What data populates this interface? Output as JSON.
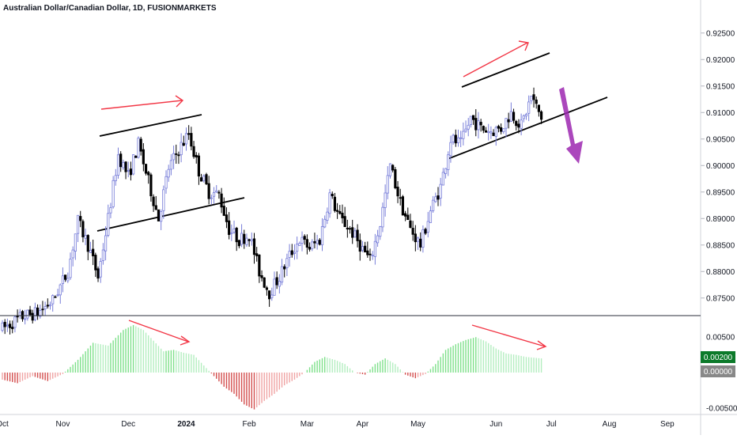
{
  "header": {
    "title": "Australian Dollar/Canadian Dollar, 1D, FUSIONMARKETS"
  },
  "colors": {
    "candle_up": "#787ed9",
    "candle_down": "#000000",
    "candle_up_body": "#ffffff",
    "hist_pos_strong": "#7ee08a",
    "hist_pos_weak": "#b4eec0",
    "hist_neg_strong": "#d44e4e",
    "hist_neg_weak": "#f0a4a4",
    "annotation_red": "#f23645",
    "annotation_purple": "#9c27b0",
    "badge_green": "#0c7a2a",
    "badge_grey": "#888888"
  },
  "chart_data": [
    {
      "type": "candlestick",
      "title": "Australian Dollar/Canadian Dollar, 1D, FUSIONMARKETS",
      "x_ticks": [
        "Oct",
        "Nov",
        "Dec",
        "2024",
        "Feb",
        "Mar",
        "Apr",
        "May",
        "Jun",
        "Jul",
        "Aug",
        "Sep"
      ],
      "y_ticks": [
        "0.87500",
        "0.88000",
        "0.88500",
        "0.89000",
        "0.89500",
        "0.90000",
        "0.90500",
        "0.91000",
        "0.91500",
        "0.92000",
        "0.92500"
      ],
      "ylim": [
        0.8683,
        0.9275
      ],
      "anchors": [
        [
          0,
          0.8692
        ],
        [
          8,
          0.8715
        ],
        [
          14,
          0.8722
        ],
        [
          20,
          0.8745
        ],
        [
          26,
          0.88
        ],
        [
          30,
          0.8895
        ],
        [
          34,
          0.885
        ],
        [
          38,
          0.879
        ],
        [
          42,
          0.89
        ],
        [
          46,
          0.902
        ],
        [
          50,
          0.898
        ],
        [
          54,
          0.904
        ],
        [
          58,
          0.897
        ],
        [
          62,
          0.89
        ],
        [
          66,
          0.8995
        ],
        [
          70,
          0.903
        ],
        [
          74,
          0.906
        ],
        [
          78,
          0.899
        ],
        [
          82,
          0.895
        ],
        [
          86,
          0.8945
        ],
        [
          90,
          0.888
        ],
        [
          94,
          0.886
        ],
        [
          98,
          0.887
        ],
        [
          102,
          0.88
        ],
        [
          106,
          0.876
        ],
        [
          110,
          0.879
        ],
        [
          114,
          0.883
        ],
        [
          118,
          0.886
        ],
        [
          122,
          0.8845
        ],
        [
          126,
          0.886
        ],
        [
          130,
          0.8945
        ],
        [
          134,
          0.89
        ],
        [
          138,
          0.888
        ],
        [
          142,
          0.885
        ],
        [
          146,
          0.882
        ],
        [
          150,
          0.889
        ],
        [
          154,
          0.9
        ],
        [
          158,
          0.893
        ],
        [
          162,
          0.888
        ],
        [
          166,
          0.885
        ],
        [
          170,
          0.8915
        ],
        [
          174,
          0.896
        ],
        [
          178,
          0.905
        ],
        [
          182,
          0.904
        ],
        [
          186,
          0.909
        ],
        [
          190,
          0.907
        ],
        [
          194,
          0.9065
        ],
        [
          198,
          0.907
        ],
        [
          202,
          0.91
        ],
        [
          206,
          0.9075
        ],
        [
          210,
          0.913
        ],
        [
          214,
          0.909
        ]
      ],
      "annotations": [
        "resistance line Nov-Dec",
        "support line Nov-Jan",
        "rising channel upper May-Jun",
        "rising channel lower May-Jul",
        "red up arrow Dec",
        "red up arrow Jun",
        "purple down arrow"
      ]
    },
    {
      "type": "histogram",
      "series_name": "oscillator",
      "y_ticks": [
        "0.00500",
        "0.00200",
        "0.00000",
        "-0.00500"
      ],
      "ylim": [
        -0.0062,
        0.0072
      ],
      "last_value": "0.00200",
      "zero_label": "0.00000",
      "anchors": [
        [
          0,
          -0.001
        ],
        [
          6,
          -0.0015
        ],
        [
          12,
          -0.0005
        ],
        [
          18,
          -0.0012
        ],
        [
          24,
          -0.0002
        ],
        [
          30,
          0.0018
        ],
        [
          36,
          0.0042
        ],
        [
          42,
          0.0038
        ],
        [
          48,
          0.006
        ],
        [
          52,
          0.0067
        ],
        [
          56,
          0.006
        ],
        [
          60,
          0.0045
        ],
        [
          64,
          0.003
        ],
        [
          68,
          0.0032
        ],
        [
          72,
          0.0028
        ],
        [
          76,
          0.0025
        ],
        [
          80,
          0.001
        ],
        [
          84,
          -0.0005
        ],
        [
          88,
          -0.002
        ],
        [
          92,
          -0.003
        ],
        [
          96,
          -0.0045
        ],
        [
          100,
          -0.0052
        ],
        [
          104,
          -0.004
        ],
        [
          108,
          -0.003
        ],
        [
          112,
          -0.0018
        ],
        [
          116,
          -0.001
        ],
        [
          120,
          0.0
        ],
        [
          124,
          0.0015
        ],
        [
          128,
          0.0022
        ],
        [
          132,
          0.0018
        ],
        [
          136,
          0.0012
        ],
        [
          140,
          0.0
        ],
        [
          144,
          -0.0003
        ],
        [
          148,
          0.0012
        ],
        [
          152,
          0.002
        ],
        [
          156,
          0.0012
        ],
        [
          160,
          -0.0003
        ],
        [
          164,
          -0.0008
        ],
        [
          168,
          -0.0002
        ],
        [
          172,
          0.0012
        ],
        [
          176,
          0.0032
        ],
        [
          180,
          0.004
        ],
        [
          184,
          0.0046
        ],
        [
          188,
          0.005
        ],
        [
          192,
          0.0044
        ],
        [
          196,
          0.0034
        ],
        [
          200,
          0.0027
        ],
        [
          204,
          0.0025
        ],
        [
          208,
          0.0022
        ],
        [
          214,
          0.002
        ]
      ]
    }
  ]
}
